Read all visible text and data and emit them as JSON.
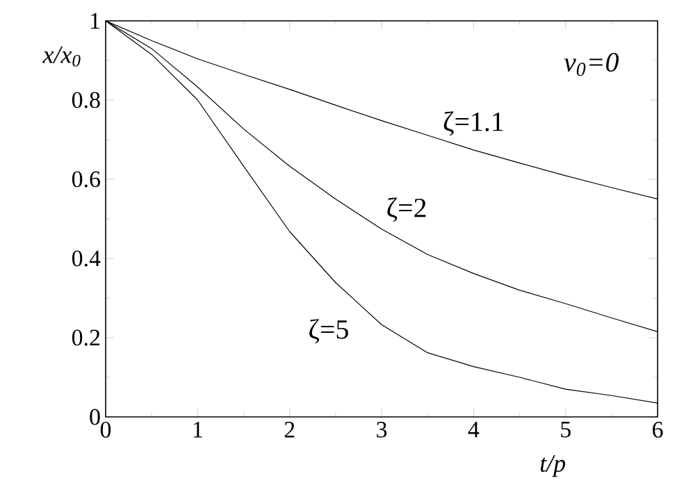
{
  "chart_data": {
    "type": "line",
    "xlabel": "t/p",
    "ylabel": "x/x$_{0}$",
    "annotations": [
      "v$_{0}$=0"
    ],
    "x": [
      0,
      0.5,
      1,
      1.5,
      2,
      2.5,
      3,
      3.5,
      4,
      4.5,
      5,
      5.5,
      6
    ],
    "series": [
      {
        "name": "ζ=1.1",
        "color": "#000000",
        "values": [
          1,
          0.95,
          0.904,
          0.865,
          0.827,
          0.787,
          0.748,
          0.711,
          0.674,
          0.641,
          0.609,
          0.579,
          0.55
        ]
      },
      {
        "name": "ζ=2",
        "color": "#000000",
        "values": [
          1,
          0.93,
          0.833,
          0.727,
          0.633,
          0.55,
          0.474,
          0.41,
          0.362,
          0.32,
          0.286,
          0.25,
          0.215
        ]
      },
      {
        "name": "ζ=5",
        "color": "#000000",
        "values": [
          1,
          0.915,
          0.8,
          0.633,
          0.468,
          0.339,
          0.233,
          0.162,
          0.127,
          0.1,
          0.07,
          0.054,
          0.035
        ]
      }
    ],
    "xlim": [
      0,
      6
    ],
    "ylim": [
      0,
      1
    ],
    "xticks": [
      0,
      1,
      2,
      3,
      4,
      5,
      6
    ],
    "yticks": [
      0,
      0.2,
      0.4,
      0.6,
      0.8,
      1
    ],
    "grid": false,
    "legend": false,
    "marker": "none",
    "line_style": "solid"
  }
}
